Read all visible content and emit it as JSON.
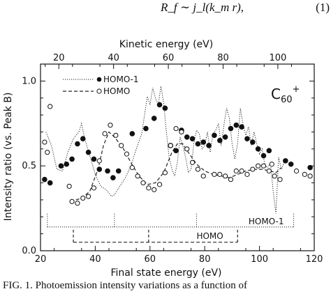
{
  "equation": {
    "formula": "R_f ∼ j_l(k_m r),",
    "number": "(1)"
  },
  "caption": "FIG. 1.  Photoemission intensity variations as a function of",
  "chart_data": {
    "type": "scatter",
    "ion_label": "C60+",
    "xlabel": "Final state energy (eV)",
    "ylabel": "Intensity ratio (vs. Peak B)",
    "top_xlabel": "Kinetic energy (eV)",
    "xlim": [
      20,
      120
    ],
    "ylim": [
      0.0,
      1.1
    ],
    "top_xlim": [
      13.3,
      113.3
    ],
    "x_ticks": [
      "20",
      "40",
      "60",
      "80",
      "100",
      "120"
    ],
    "x_tick_values": [
      20,
      40,
      60,
      80,
      100,
      120
    ],
    "y_ticks": [
      "0.0",
      "0.5",
      "1.0"
    ],
    "y_tick_values": [
      0.0,
      0.5,
      1.0
    ],
    "top_ticks": [
      "20",
      "40",
      "60",
      "80",
      "100"
    ],
    "top_tick_values": [
      20,
      40,
      60,
      80,
      100
    ],
    "legend_location": "upper-left",
    "series": [
      {
        "name": "HOMO-1",
        "marker": "filled-circle",
        "line": "dotted",
        "points": [
          [
            21.5,
            0.42
          ],
          [
            23.5,
            0.4
          ],
          [
            27.5,
            0.5
          ],
          [
            29.5,
            0.51
          ],
          [
            31.5,
            0.54
          ],
          [
            33.5,
            0.63
          ],
          [
            35.5,
            0.66
          ],
          [
            37.5,
            0.58
          ],
          [
            39.5,
            0.54
          ],
          [
            41.5,
            0.48
          ],
          [
            44.5,
            0.47
          ],
          [
            46.5,
            0.43
          ],
          [
            48.5,
            0.47
          ],
          [
            53.5,
            0.69
          ],
          [
            58.5,
            0.72
          ],
          [
            61.5,
            0.78
          ],
          [
            63.5,
            0.86
          ],
          [
            65.5,
            0.84
          ],
          [
            67.5,
            0.62
          ],
          [
            69.5,
            0.59
          ],
          [
            71.5,
            0.71
          ],
          [
            73.5,
            0.67
          ],
          [
            75.5,
            0.66
          ],
          [
            77.5,
            0.63
          ],
          [
            79.5,
            0.64
          ],
          [
            81.5,
            0.62
          ],
          [
            83.5,
            0.68
          ],
          [
            85.5,
            0.65
          ],
          [
            87.5,
            0.67
          ],
          [
            89.5,
            0.72
          ],
          [
            91.5,
            0.74
          ],
          [
            93.5,
            0.73
          ],
          [
            95.5,
            0.66
          ],
          [
            97.5,
            0.64
          ],
          [
            99.5,
            0.6
          ],
          [
            101.5,
            0.56
          ],
          [
            103.5,
            0.59
          ],
          [
            109.5,
            0.53
          ],
          [
            111.5,
            0.51
          ],
          [
            118.5,
            0.49
          ]
        ],
        "line_points": [
          [
            22,
            0.7
          ],
          [
            24,
            0.62
          ],
          [
            26,
            0.48
          ],
          [
            28,
            0.47
          ],
          [
            30,
            0.58
          ],
          [
            32,
            0.66
          ],
          [
            34,
            0.7
          ],
          [
            35,
            0.75
          ],
          [
            36,
            0.67
          ],
          [
            38,
            0.56
          ],
          [
            40,
            0.45
          ],
          [
            42,
            0.38
          ],
          [
            44,
            0.36
          ],
          [
            46,
            0.32
          ],
          [
            47,
            0.33
          ],
          [
            49,
            0.38
          ],
          [
            51,
            0.43
          ],
          [
            53,
            0.5
          ],
          [
            55,
            0.6
          ],
          [
            57,
            0.69
          ],
          [
            58,
            0.8
          ],
          [
            59,
            0.91
          ],
          [
            60,
            0.86
          ],
          [
            61,
            0.96
          ],
          [
            62,
            0.9
          ],
          [
            63,
            0.86
          ],
          [
            64,
            0.97
          ],
          [
            65,
            0.87
          ],
          [
            66,
            0.7
          ],
          [
            67,
            0.55
          ],
          [
            68,
            0.48
          ],
          [
            69,
            0.44
          ],
          [
            70,
            0.52
          ],
          [
            71,
            0.67
          ],
          [
            72,
            0.62
          ],
          [
            73,
            0.55
          ],
          [
            74,
            0.46
          ],
          [
            75,
            0.48
          ],
          [
            76,
            0.63
          ],
          [
            77,
            0.71
          ],
          [
            78,
            0.69
          ],
          [
            79,
            0.6
          ],
          [
            80,
            0.62
          ],
          [
            81,
            0.7
          ],
          [
            82,
            0.58
          ],
          [
            83,
            0.69
          ],
          [
            84,
            0.71
          ],
          [
            85,
            0.75
          ],
          [
            86,
            0.62
          ],
          [
            87,
            0.74
          ],
          [
            88,
            0.84
          ],
          [
            89,
            0.78
          ],
          [
            90,
            0.63
          ],
          [
            91,
            0.54
          ],
          [
            92,
            0.63
          ],
          [
            93,
            0.84
          ],
          [
            94,
            0.74
          ],
          [
            95,
            0.68
          ],
          [
            96,
            0.73
          ],
          [
            97,
            0.62
          ],
          [
            98,
            0.7
          ],
          [
            99,
            0.63
          ],
          [
            100,
            0.57
          ],
          [
            101,
            0.6
          ],
          [
            102,
            0.5
          ],
          [
            103,
            0.49
          ],
          [
            104,
            0.52
          ],
          [
            105,
            0.35
          ],
          [
            106,
            0.22
          ],
          [
            107,
            0.55
          ],
          [
            108,
            0.48
          ],
          [
            109,
            0.52
          ]
        ]
      },
      {
        "name": "HOMO",
        "marker": "open-circle",
        "line": "dashed",
        "points": [
          [
            21.5,
            0.64
          ],
          [
            22.5,
            0.58
          ],
          [
            23.5,
            0.85
          ],
          [
            30.5,
            0.38
          ],
          [
            31.5,
            0.29
          ],
          [
            33.5,
            0.28
          ],
          [
            35.5,
            0.31
          ],
          [
            37.5,
            0.32
          ],
          [
            39.5,
            0.37
          ],
          [
            41.5,
            0.53
          ],
          [
            43.5,
            0.69
          ],
          [
            45.5,
            0.74
          ],
          [
            47.5,
            0.68
          ],
          [
            49.5,
            0.62
          ],
          [
            51.5,
            0.57
          ],
          [
            53.5,
            0.49
          ],
          [
            55.5,
            0.44
          ],
          [
            57.5,
            0.4
          ],
          [
            59.5,
            0.37
          ],
          [
            61.5,
            0.36
          ],
          [
            63.5,
            0.39
          ],
          [
            65.5,
            0.46
          ],
          [
            67.5,
            0.62
          ],
          [
            69.5,
            0.72
          ],
          [
            71.5,
            0.7
          ],
          [
            73.5,
            0.6
          ],
          [
            75.5,
            0.52
          ],
          [
            77.5,
            0.48
          ],
          [
            79.5,
            0.44
          ],
          [
            83.5,
            0.45
          ],
          [
            85.5,
            0.45
          ],
          [
            87.5,
            0.44
          ],
          [
            89.5,
            0.42
          ],
          [
            91.5,
            0.47
          ],
          [
            93.5,
            0.47
          ],
          [
            95.5,
            0.45
          ],
          [
            97.5,
            0.48
          ],
          [
            99.5,
            0.5
          ],
          [
            101.5,
            0.5
          ],
          [
            103.5,
            0.47
          ],
          [
            104.5,
            0.51
          ],
          [
            105.5,
            0.44
          ],
          [
            107.5,
            0.42
          ],
          [
            113.5,
            0.47
          ],
          [
            116.5,
            0.45
          ],
          [
            118.5,
            0.44
          ]
        ],
        "line_points": [
          [
            31,
            0.29
          ],
          [
            35,
            0.31
          ],
          [
            38,
            0.35
          ],
          [
            41,
            0.48
          ],
          [
            43,
            0.62
          ],
          [
            45,
            0.7
          ],
          [
            47,
            0.67
          ],
          [
            50,
            0.61
          ],
          [
            53,
            0.52
          ],
          [
            56,
            0.44
          ],
          [
            59,
            0.39
          ],
          [
            62,
            0.4
          ],
          [
            65,
            0.46
          ],
          [
            68,
            0.58
          ],
          [
            70,
            0.63
          ],
          [
            72,
            0.63
          ],
          [
            74,
            0.58
          ],
          [
            77,
            0.51
          ],
          [
            80,
            0.47
          ],
          [
            83,
            0.45
          ],
          [
            86,
            0.44
          ],
          [
            89,
            0.43
          ],
          [
            92,
            0.45
          ],
          [
            95,
            0.47
          ],
          [
            98,
            0.48
          ],
          [
            101,
            0.48
          ],
          [
            104,
            0.47
          ],
          [
            106,
            0.46
          ],
          [
            108,
            0.49
          ]
        ]
      }
    ],
    "annotations": {
      "homo1_bar": {
        "label": "HOMO-1",
        "line_style": "dotted",
        "y": 0.14,
        "x_range": [
          22.5,
          112.5
        ],
        "ticks": [
          22.5,
          47,
          77,
          112.5
        ],
        "label_x": 96
      },
      "homo_bar": {
        "label": "HOMO",
        "line_style": "dashed",
        "y": 0.05,
        "x_range": [
          32,
          92
        ],
        "ticks": [
          32,
          59.5,
          92
        ],
        "label_x": 77
      }
    }
  }
}
